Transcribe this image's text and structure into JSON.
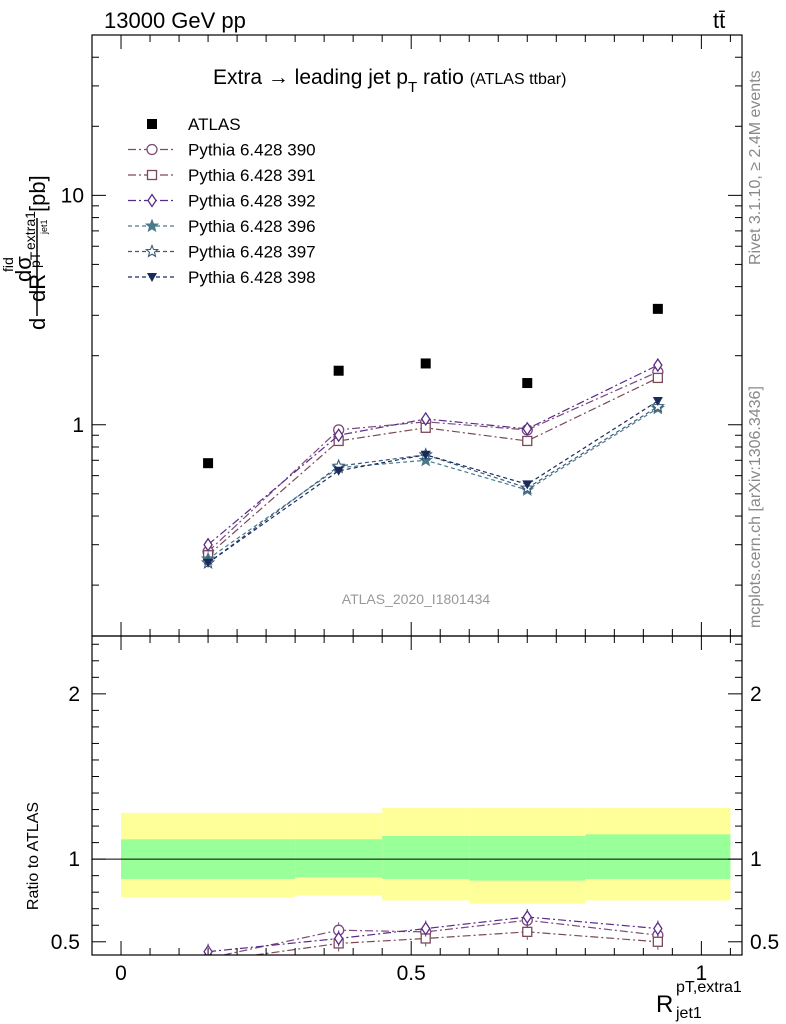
{
  "header": {
    "energy_label": "13000 GeV pp",
    "process_label": "tt̄",
    "rivet_label": "Rivet 3.1.10, ≥ 2.4M events",
    "mcplots_label": "mcplots.cern.ch [arXiv:1306.3436]",
    "analysis_label": "ATLAS_2020_I1801434"
  },
  "title": {
    "main": "Extra → leading jet p",
    "main_sub": "T",
    "main_tail": " ratio",
    "tag": "(ATLAS ttbar)"
  },
  "axes": {
    "main_ylabel": "dσ^fid / dR^pT,extra1_jet1 [pb]",
    "ratio_ylabel": "Ratio to ATLAS",
    "xlabel_main": "R",
    "xlabel_sup": "pT,extra1",
    "xlabel_sub": "jet1",
    "main_ylabel_parts": {
      "d1": "d",
      "sigma": "dσ",
      "fid": "fid",
      "dR": "dR",
      "pT": "pT",
      "extra1": "extra1",
      "jet1": "jet1",
      "unit": "[pb]"
    }
  },
  "colors": {
    "data": "#000000",
    "band_inner": "#99ff99",
    "band_outer": "#ffff99"
  },
  "chart_data": [
    {
      "type": "scatter",
      "panel": "main",
      "yscale": "log",
      "xlim": [
        -0.05,
        1.07
      ],
      "ylim": [
        0.12,
        50
      ],
      "ytick_labels": [
        "1",
        "10"
      ],
      "x": [
        0.15,
        0.375,
        0.525,
        0.7,
        0.925
      ],
      "series": [
        {
          "name": "ATLAS",
          "marker": "square-filled",
          "color": "#000000",
          "dash": "",
          "values": [
            0.68,
            1.72,
            1.85,
            1.52,
            3.2
          ]
        },
        {
          "name": "Pythia 6.428 390",
          "marker": "circle-open",
          "color": "#7a4a7a",
          "dash": "8,3,2,3",
          "values": [
            0.28,
            0.95,
            1.03,
            0.95,
            1.7
          ]
        },
        {
          "name": "Pythia 6.428 391",
          "marker": "square-open",
          "color": "#7a4a5a",
          "dash": "8,3,2,3",
          "values": [
            0.27,
            0.85,
            0.97,
            0.85,
            1.6
          ]
        },
        {
          "name": "Pythia 6.428 392",
          "marker": "diamond-open",
          "color": "#5a2a8a",
          "dash": "8,3,2,3",
          "values": [
            0.3,
            0.9,
            1.06,
            0.96,
            1.82
          ]
        },
        {
          "name": "Pythia 6.428 396",
          "marker": "star-filled",
          "color": "#4a7a8a",
          "dash": "4,3",
          "values": [
            0.26,
            0.65,
            0.7,
            0.52,
            1.18
          ]
        },
        {
          "name": "Pythia 6.428 397",
          "marker": "star-open",
          "color": "#3a5a7a",
          "dash": "4,3",
          "values": [
            0.25,
            0.66,
            0.74,
            0.53,
            1.2
          ]
        },
        {
          "name": "Pythia 6.428 398",
          "marker": "triangle-down-filled",
          "color": "#1a2a5a",
          "dash": "4,3",
          "values": [
            0.25,
            0.63,
            0.74,
            0.55,
            1.27
          ]
        }
      ]
    },
    {
      "type": "scatter",
      "panel": "ratio",
      "yscale": "linear",
      "xlim": [
        -0.05,
        1.07
      ],
      "ylim": [
        0.42,
        2.35
      ],
      "xticks": [
        0,
        0.5,
        1
      ],
      "xtick_labels": [
        "0",
        "0.5",
        "1"
      ],
      "yticks": [
        0.5,
        1,
        2
      ],
      "ytick_labels": [
        "0.5",
        "1",
        "2"
      ],
      "x": [
        0.15,
        0.375,
        0.525,
        0.7,
        0.925
      ],
      "bands": [
        {
          "x0": 0.0,
          "x1": 0.3,
          "inner": [
            0.88,
            1.12
          ],
          "outer": [
            0.77,
            1.28
          ]
        },
        {
          "x0": 0.3,
          "x1": 0.45,
          "inner": [
            0.89,
            1.12
          ],
          "outer": [
            0.78,
            1.28
          ]
        },
        {
          "x0": 0.45,
          "x1": 0.6,
          "inner": [
            0.88,
            1.14
          ],
          "outer": [
            0.75,
            1.31
          ]
        },
        {
          "x0": 0.6,
          "x1": 0.8,
          "inner": [
            0.87,
            1.14
          ],
          "outer": [
            0.73,
            1.31
          ]
        },
        {
          "x0": 0.8,
          "x1": 1.05,
          "inner": [
            0.88,
            1.15
          ],
          "outer": [
            0.75,
            1.31
          ]
        }
      ],
      "series": [
        {
          "name": "Pythia 6.428 390",
          "marker": "circle-open",
          "color": "#7a4a7a",
          "dash": "8,3,2,3",
          "values": [
            0.4,
            0.57,
            0.56,
            0.63,
            0.54
          ]
        },
        {
          "name": "Pythia 6.428 391",
          "marker": "square-open",
          "color": "#7a4a5a",
          "dash": "8,3,2,3",
          "values": [
            0.38,
            0.49,
            0.52,
            0.56,
            0.5
          ]
        },
        {
          "name": "Pythia 6.428 392",
          "marker": "diamond-open",
          "color": "#5a2a8a",
          "dash": "8,3,2,3",
          "values": [
            0.44,
            0.52,
            0.58,
            0.65,
            0.58
          ]
        }
      ]
    }
  ]
}
